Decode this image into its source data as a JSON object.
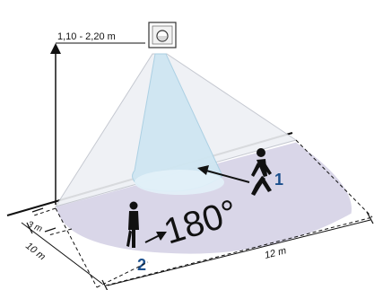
{
  "diagram": {
    "height_label": "1,10 - 2,20 m",
    "angle_label": "180°",
    "near_depth_label": "3 m",
    "depth_label": "10 m",
    "width_label": "12 m",
    "person_1_number": "1",
    "person_2_number": "2",
    "colors": {
      "floor_zone": "#d9d6e8",
      "cone_outer": "#eef0f4",
      "cone_inner": "#cfe6f2",
      "marker_blue": "#1b4f8c",
      "line": "#111111"
    }
  }
}
